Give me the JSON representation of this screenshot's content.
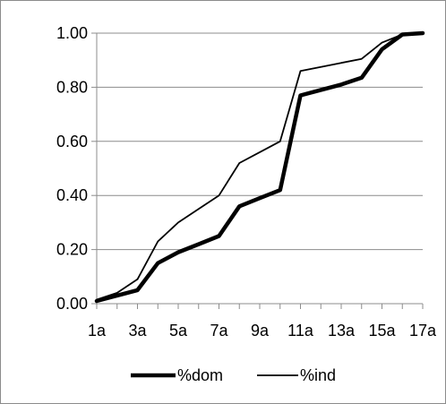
{
  "chart_data": {
    "type": "line",
    "title": "",
    "xlabel": "",
    "ylabel": "",
    "x": [
      "1a",
      "2a",
      "3a",
      "4a",
      "5a",
      "6a",
      "7a",
      "8a",
      "9a",
      "10a",
      "11a",
      "12a",
      "13a",
      "14a",
      "15a",
      "16a",
      "17a"
    ],
    "x_tick_labels": [
      "1a",
      "3a",
      "5a",
      "7a",
      "9a",
      "11a",
      "13a",
      "15a",
      "17a"
    ],
    "y_tick_labels": [
      "0.00",
      "0.20",
      "0.40",
      "0.60",
      "0.80",
      "1.00"
    ],
    "ylim": [
      0,
      1
    ],
    "grid": "horizontal",
    "legend_position": "bottom",
    "series": [
      {
        "name": "%dom",
        "color": "#000000",
        "line_weight": "thick",
        "values": [
          0.01,
          0.03,
          0.05,
          0.15,
          0.19,
          0.22,
          0.25,
          0.36,
          0.39,
          0.42,
          0.77,
          0.79,
          0.81,
          0.835,
          0.94,
          0.995,
          1.0
        ]
      },
      {
        "name": "%ind",
        "color": "#000000",
        "line_weight": "thin",
        "values": [
          0.015,
          0.04,
          0.09,
          0.23,
          0.3,
          0.35,
          0.4,
          0.52,
          0.56,
          0.6,
          0.86,
          0.875,
          0.89,
          0.905,
          0.965,
          0.995,
          1.0
        ]
      }
    ]
  }
}
